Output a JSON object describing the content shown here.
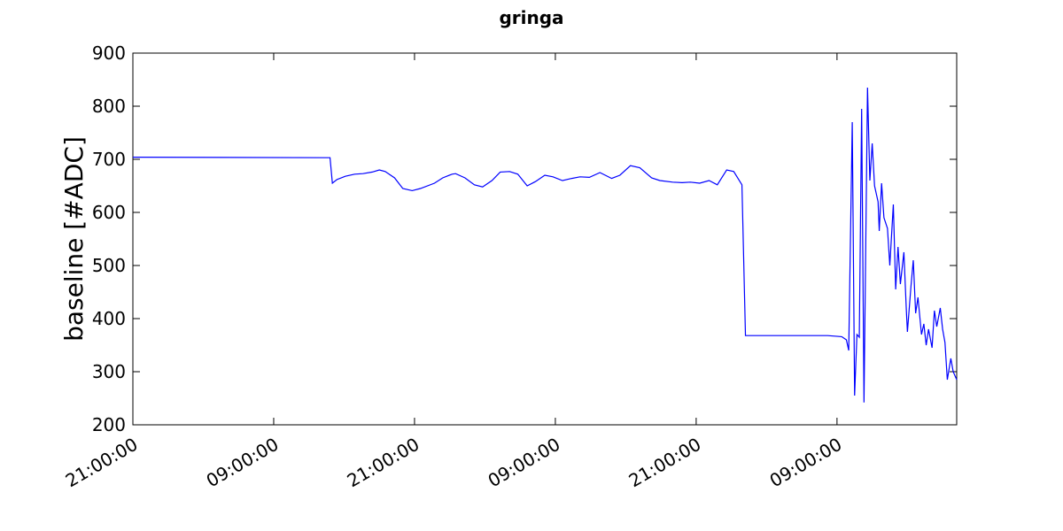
{
  "chart_data": {
    "type": "line",
    "title": "gringa",
    "ylabel": "baseline [#ADC]",
    "x": [
      0,
      16.8,
      17.0,
      17.4,
      18.1,
      18.9,
      19.6,
      20.4,
      21.0,
      21.5,
      22.3,
      23.0,
      23.8,
      24.5,
      25.7,
      26.4,
      27.2,
      27.5,
      28.3,
      29.1,
      29.8,
      30.6,
      31.3,
      32.1,
      32.8,
      33.6,
      34.3,
      35.1,
      35.8,
      36.6,
      37.4,
      38.1,
      38.9,
      39.8,
      40.8,
      41.5,
      42.4,
      43.2,
      44.2,
      44.9,
      46.0,
      46.8,
      47.5,
      48.3,
      49.1,
      49.8,
      50.6,
      51.2,
      51.9,
      52.2,
      59.2,
      60.4,
      60.8,
      61.0,
      61.3,
      61.5,
      61.7,
      61.9,
      62.1,
      62.3,
      62.6,
      62.8,
      63.0,
      63.2,
      63.5,
      63.6,
      63.8,
      64.0,
      64.3,
      64.5,
      64.8,
      65.0,
      65.2,
      65.4,
      65.7,
      65.9,
      66.0,
      66.3,
      66.5,
      66.7,
      66.9,
      67.2,
      67.4,
      67.6,
      67.8,
      68.1,
      68.3,
      68.5,
      68.8,
      69.0,
      69.2,
      69.4,
      69.7,
      69.9,
      70.2
    ],
    "series": [
      {
        "color": "#0000ff",
        "values": [
          704,
          703,
          655,
          662,
          668,
          672,
          673,
          676,
          680,
          677,
          665,
          645,
          641,
          645,
          655,
          665,
          672,
          673,
          665,
          652,
          648,
          660,
          676,
          677,
          672,
          650,
          658,
          670,
          667,
          660,
          664,
          667,
          666,
          675,
          664,
          670,
          688,
          684,
          665,
          660,
          657,
          656,
          657,
          655,
          660,
          652,
          680,
          677,
          652,
          368,
          368,
          366,
          360,
          340,
          770,
          255,
          370,
          365,
          795,
          242,
          835,
          660,
          730,
          650,
          620,
          565,
          655,
          590,
          570,
          500,
          615,
          455,
          535,
          465,
          525,
          420,
          375,
          460,
          510,
          410,
          440,
          370,
          390,
          350,
          380,
          345,
          415,
          385,
          420,
          380,
          355,
          285,
          325,
          300,
          285
        ]
      }
    ],
    "xlim": [
      0,
      70.2
    ],
    "xticks": [
      {
        "value": 0,
        "label": "21:00:00"
      },
      {
        "value": 12,
        "label": "09:00:00"
      },
      {
        "value": 24,
        "label": "21:00:00"
      },
      {
        "value": 36,
        "label": "09:00:00"
      },
      {
        "value": 48,
        "label": "21:00:00"
      },
      {
        "value": 60,
        "label": "09:00:00"
      }
    ],
    "ylim": [
      200,
      900
    ],
    "yticks": [
      200,
      300,
      400,
      500,
      600,
      700,
      800,
      900
    ]
  }
}
